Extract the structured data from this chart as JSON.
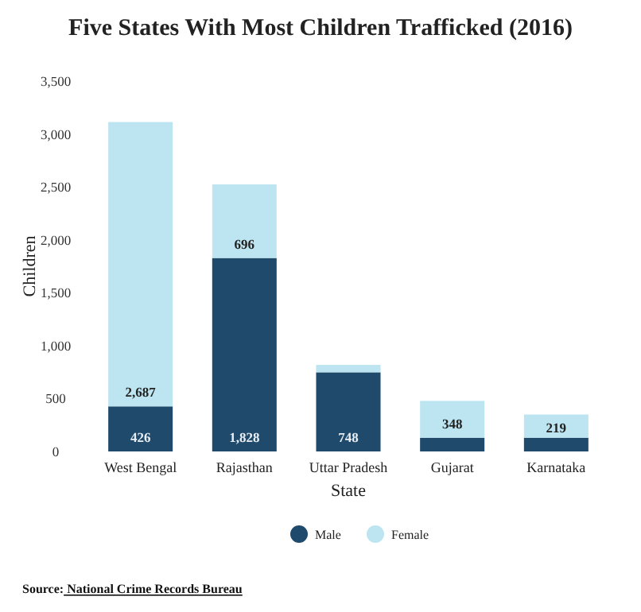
{
  "chart_data": {
    "type": "bar",
    "title": "Five States With Most Children Trafficked (2016)",
    "xlabel": "State",
    "ylabel": "Children",
    "categories": [
      "West Bengal",
      "Rajasthan",
      "Uttar Pradesh",
      "Gujarat",
      "Karnataka"
    ],
    "stacked": true,
    "series": [
      {
        "name": "Male",
        "color": "#1f4a6c",
        "values": [
          426,
          1828,
          748,
          130,
          130
        ],
        "value_labels": [
          "426",
          "1,828",
          "748",
          null,
          null
        ]
      },
      {
        "name": "Female",
        "color": "#bde5f1",
        "values": [
          2687,
          696,
          70,
          348,
          219
        ],
        "value_labels": [
          "2,687",
          "696",
          null,
          "348",
          "219"
        ]
      }
    ],
    "ylim": [
      0,
      3500
    ],
    "yticks": [
      0,
      500,
      {
        "value": 1000,
        "label": "1,000"
      },
      {
        "value": 1500,
        "label": "1,500"
      },
      {
        "value": 2000,
        "label": "2,000"
      },
      {
        "value": 2500,
        "label": "2,500"
      },
      {
        "value": 3000,
        "label": "3,000"
      },
      {
        "value": 3500,
        "label": "3,500"
      }
    ],
    "grid": false,
    "legend": "bottom",
    "annotations": [
      "Source: National Crime Records Bureau"
    ]
  }
}
